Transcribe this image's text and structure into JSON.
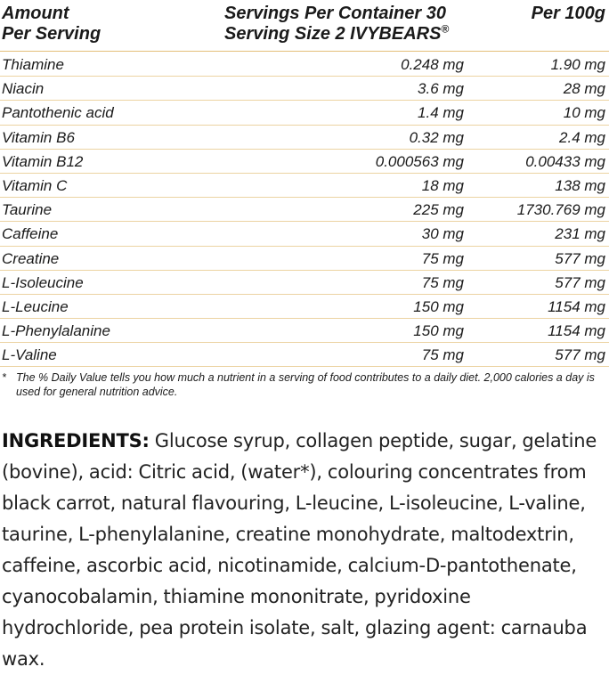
{
  "header": {
    "col_amount_line1": "Amount",
    "col_amount_line2": "Per Serving",
    "servings_per_container": "Servings Per Container 30",
    "serving_size": "Serving Size 2 IVYBEARS",
    "serving_size_mark": "®",
    "col_per100": "Per 100g"
  },
  "nutrients": [
    {
      "name": "Thiamine",
      "serving": "0.248 mg",
      "per100": "1.90 mg"
    },
    {
      "name": "Niacin",
      "serving": "3.6 mg",
      "per100": "28 mg"
    },
    {
      "name": "Pantothenic acid",
      "serving": "1.4 mg",
      "per100": "10 mg"
    },
    {
      "name": "Vitamin B6",
      "serving": "0.32 mg",
      "per100": "2.4 mg"
    },
    {
      "name": "Vitamin B12",
      "serving": "0.000563 mg",
      "per100": "0.00433 mg"
    },
    {
      "name": "Vitamin C",
      "serving": "18 mg",
      "per100": "138 mg"
    },
    {
      "name": "Taurine",
      "serving": "225 mg",
      "per100": "1730.769 mg"
    },
    {
      "name": "Caffeine",
      "serving": "30 mg",
      "per100": "231 mg"
    },
    {
      "name": "Creatine",
      "serving": "75 mg",
      "per100": "577 mg"
    },
    {
      "name": "L-Isoleucine",
      "serving": "75 mg",
      "per100": "577 mg"
    },
    {
      "name": "L-Leucine",
      "serving": "150 mg",
      "per100": "1154 mg"
    },
    {
      "name": "L-Phenylalanine",
      "serving": "150 mg",
      "per100": "1154 mg"
    },
    {
      "name": "L-Valine",
      "serving": "75 mg",
      "per100": "577 mg"
    }
  ],
  "footnote": {
    "marker": "*",
    "text": "The % Daily Value tells you how much a nutrient in a serving of food contributes to a daily diet. 2,000 calories a day is used for general nutrition advice."
  },
  "ingredients": {
    "label": "INGREDIENTS:",
    "text": " Glucose syrup, collagen peptide, sugar, gelatine (bovine), acid: Citric acid, (water*), colouring concentrates from black carrot, natural flavouring, L-leucine, L-isoleucine, L-valine, taurine, L-phenylalanine, creatine monohydrate, maltodextrin, caffeine, ascorbic acid, nicotinamide, calcium-D-pantothenate, cyanocobalamin, thiamine mononitrate, pyridoxine hydrochloride, pea protein isolate, salt, glazing agent: carnauba wax."
  },
  "colors": {
    "rule": "#e4bf7a",
    "row_divider": "#ecd3a2",
    "text": "#1a1a1a"
  }
}
